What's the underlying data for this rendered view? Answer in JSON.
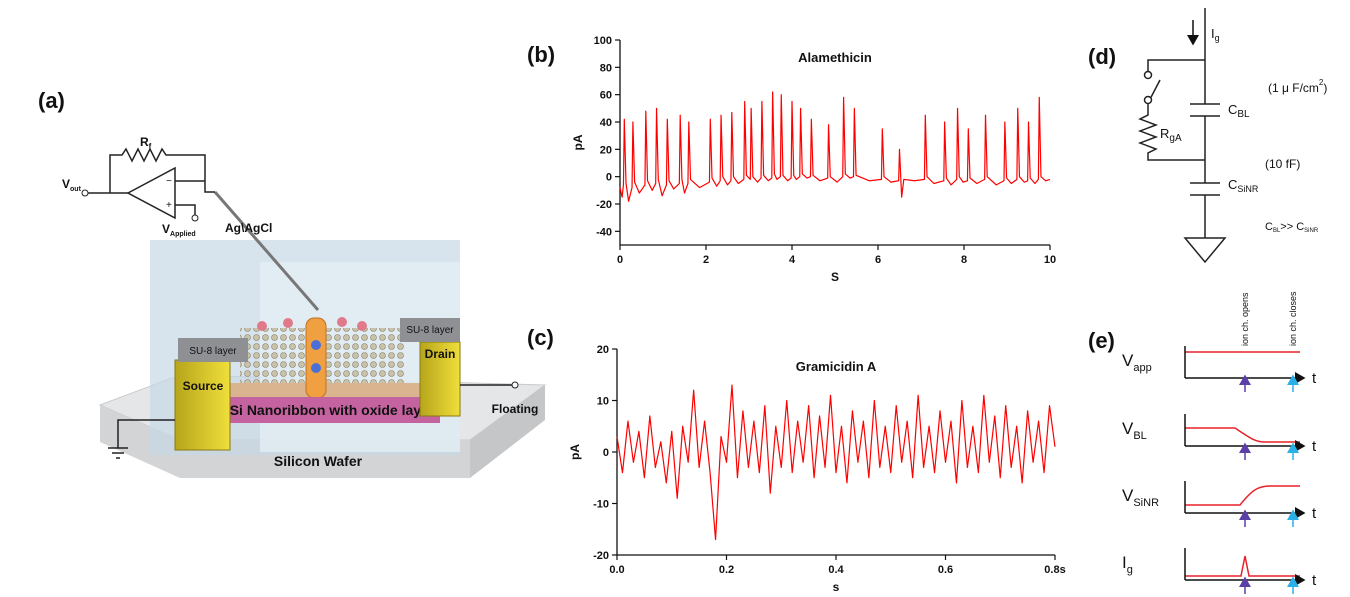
{
  "panel_a": {
    "label": "(a)",
    "rf": {
      "main": "R",
      "sub": "f"
    },
    "vout": {
      "main": "V",
      "sub": "out"
    },
    "vapplied": {
      "main": "V",
      "sub": "Applied"
    },
    "electrode": "Ag\\AgCl",
    "su8_left": "SU-8 layer",
    "su8_right": "SU-8 layer",
    "source": "Source",
    "drain": "Drain",
    "nanoribbon": "Si Nanoribbon with oxide layer",
    "floating": "Floating",
    "wafer": "Silicon Wafer"
  },
  "chart_data": [
    {
      "type": "line",
      "panel_label": "(b)",
      "title": "Alamethicin",
      "x_label": "S",
      "y_label": "pA",
      "color": "#ff0000",
      "x": [
        0,
        0.05,
        0.08,
        0.1,
        0.14,
        0.2,
        0.28,
        0.3,
        0.34,
        0.45,
        0.58,
        0.6,
        0.64,
        0.75,
        0.83,
        0.85,
        0.89,
        0.98,
        1.08,
        1.1,
        1.14,
        1.25,
        1.38,
        1.4,
        1.44,
        1.5,
        1.58,
        1.6,
        1.64,
        1.85,
        2.08,
        2.1,
        2.14,
        2.25,
        2.33,
        2.35,
        2.39,
        2.5,
        2.58,
        2.6,
        2.64,
        2.75,
        2.88,
        2.9,
        2.94,
        3.03,
        3.05,
        3.09,
        3.2,
        3.28,
        3.3,
        3.34,
        3.45,
        3.53,
        3.55,
        3.59,
        3.65,
        3.73,
        3.75,
        3.79,
        3.9,
        3.98,
        4.0,
        4.04,
        4.1,
        4.18,
        4.2,
        4.24,
        4.35,
        4.43,
        4.45,
        4.49,
        4.65,
        4.83,
        4.85,
        4.89,
        5.05,
        5.18,
        5.2,
        5.24,
        5.35,
        5.43,
        5.45,
        5.49,
        5.8,
        6.08,
        6.1,
        6.14,
        6.3,
        6.48,
        6.5,
        6.55,
        6.6,
        6.85,
        7.08,
        7.1,
        7.14,
        7.3,
        7.53,
        7.55,
        7.59,
        7.7,
        7.83,
        7.85,
        7.89,
        7.98,
        8.08,
        8.1,
        8.14,
        8.3,
        8.48,
        8.5,
        8.54,
        8.75,
        8.93,
        8.95,
        8.99,
        9.1,
        9.23,
        9.25,
        9.29,
        9.4,
        9.48,
        9.5,
        9.54,
        9.65,
        9.73,
        9.75,
        9.79,
        9.9,
        10
      ],
      "values": [
        -8,
        -15,
        -6,
        42,
        -5,
        -18,
        -8,
        40,
        -4,
        -12,
        -6,
        48,
        -3,
        -10,
        -5,
        50,
        -2,
        -14,
        -6,
        42,
        -3,
        -9,
        -5,
        45,
        -2,
        -12,
        -5,
        40,
        -2,
        -8,
        -4,
        42,
        -1,
        -7,
        -3,
        45,
        0,
        -6,
        -3,
        47,
        0,
        -5,
        -2,
        55,
        1,
        -2,
        50,
        0,
        -4,
        -1,
        55,
        1,
        -3,
        -1,
        62,
        2,
        -2,
        0,
        60,
        1,
        -3,
        -1,
        55,
        1,
        -2,
        0,
        50,
        2,
        -1,
        0,
        42,
        1,
        -3,
        -1,
        38,
        0,
        -4,
        0,
        58,
        2,
        -1,
        0,
        50,
        1,
        -3,
        -2,
        35,
        0,
        -4,
        -3,
        20,
        -15,
        -2,
        -3,
        -2,
        45,
        0,
        -5,
        -3,
        40,
        -1,
        -6,
        -2,
        50,
        0,
        -4,
        -3,
        35,
        -1,
        -5,
        -2,
        45,
        0,
        -6,
        -3,
        40,
        -1,
        -5,
        -2,
        50,
        0,
        -4,
        -3,
        40,
        -1,
        -5,
        -2,
        58,
        0,
        -3,
        -2
      ],
      "xlim": [
        0,
        10
      ],
      "xticks": [
        0,
        2,
        4,
        6,
        8,
        10
      ],
      "ylim": [
        -50,
        100
      ],
      "yticks": [
        -40,
        -20,
        0,
        20,
        40,
        60,
        80,
        100
      ]
    },
    {
      "type": "line",
      "panel_label": "(c)",
      "title": "Gramicidin A",
      "x_label": "s",
      "y_label": "pA",
      "color": "#ff0000",
      "x": [
        0,
        0.01,
        0.02,
        0.03,
        0.04,
        0.05,
        0.06,
        0.07,
        0.08,
        0.09,
        0.1,
        0.11,
        0.12,
        0.13,
        0.14,
        0.15,
        0.16,
        0.17,
        0.18,
        0.19,
        0.2,
        0.21,
        0.22,
        0.23,
        0.24,
        0.25,
        0.26,
        0.27,
        0.28,
        0.29,
        0.3,
        0.31,
        0.32,
        0.33,
        0.34,
        0.35,
        0.36,
        0.37,
        0.38,
        0.39,
        0.4,
        0.41,
        0.42,
        0.43,
        0.44,
        0.45,
        0.46,
        0.47,
        0.48,
        0.49,
        0.5,
        0.51,
        0.52,
        0.53,
        0.54,
        0.55,
        0.56,
        0.57,
        0.58,
        0.59,
        0.6,
        0.61,
        0.62,
        0.63,
        0.64,
        0.65,
        0.66,
        0.67,
        0.68,
        0.69,
        0.7,
        0.71,
        0.72,
        0.73,
        0.74,
        0.75,
        0.76,
        0.77,
        0.78,
        0.79,
        0.8
      ],
      "values": [
        3,
        -4,
        6,
        -2,
        4,
        -5,
        7,
        -3,
        2,
        -6,
        4,
        -9,
        5,
        -2,
        12,
        -3,
        6,
        -4,
        -17,
        3,
        -2,
        13,
        -5,
        8,
        -3,
        6,
        -4,
        9,
        -8,
        5,
        -3,
        10,
        -4,
        6,
        -2,
        9,
        -5,
        7,
        -3,
        11,
        -4,
        5,
        -6,
        8,
        -2,
        6,
        -5,
        10,
        -3,
        5,
        -4,
        9,
        -2,
        6,
        -5,
        11,
        -3,
        5,
        -4,
        8,
        -2,
        6,
        -6,
        10,
        -3,
        5,
        -4,
        11,
        -2,
        7,
        -5,
        9,
        -3,
        5,
        -6,
        8,
        -2,
        6,
        -4,
        9,
        1
      ],
      "xlim": [
        0,
        0.8
      ],
      "xticks": [
        {
          "value": 0,
          "label": "0.0"
        },
        0.2,
        0.4,
        0.6,
        {
          "value": 0.8,
          "label": "0.8s"
        }
      ],
      "ylim": [
        -20,
        20
      ],
      "yticks": [
        -20,
        -10,
        0,
        10,
        20
      ]
    }
  ],
  "panel_d": {
    "label": "(d)",
    "ig": {
      "main": "I",
      "sub": "g"
    },
    "cap_density": {
      "main": "(1 μ F/cm",
      "sup": "2",
      "end": ")"
    },
    "cbl": {
      "main": "C",
      "sub": "BL"
    },
    "rga": {
      "main": "R",
      "sub": "gA"
    },
    "cap_sinr_value": "(10 fF)",
    "csinr": {
      "main": "C",
      "sub": "SiNR"
    },
    "relation": {
      "c1": "C",
      "s1": "BL",
      "op": ">> C",
      "s2": "SiNR"
    }
  },
  "panel_e": {
    "label": "(e)",
    "opens": "ion ch. opens",
    "closes": "ion ch. closes",
    "rows": [
      {
        "main": "V",
        "sub": "app"
      },
      {
        "main": "V",
        "sub": "BL"
      },
      {
        "main": "V",
        "sub": "SiNR"
      },
      {
        "main": "I",
        "sub": "g"
      }
    ],
    "t": "t"
  }
}
